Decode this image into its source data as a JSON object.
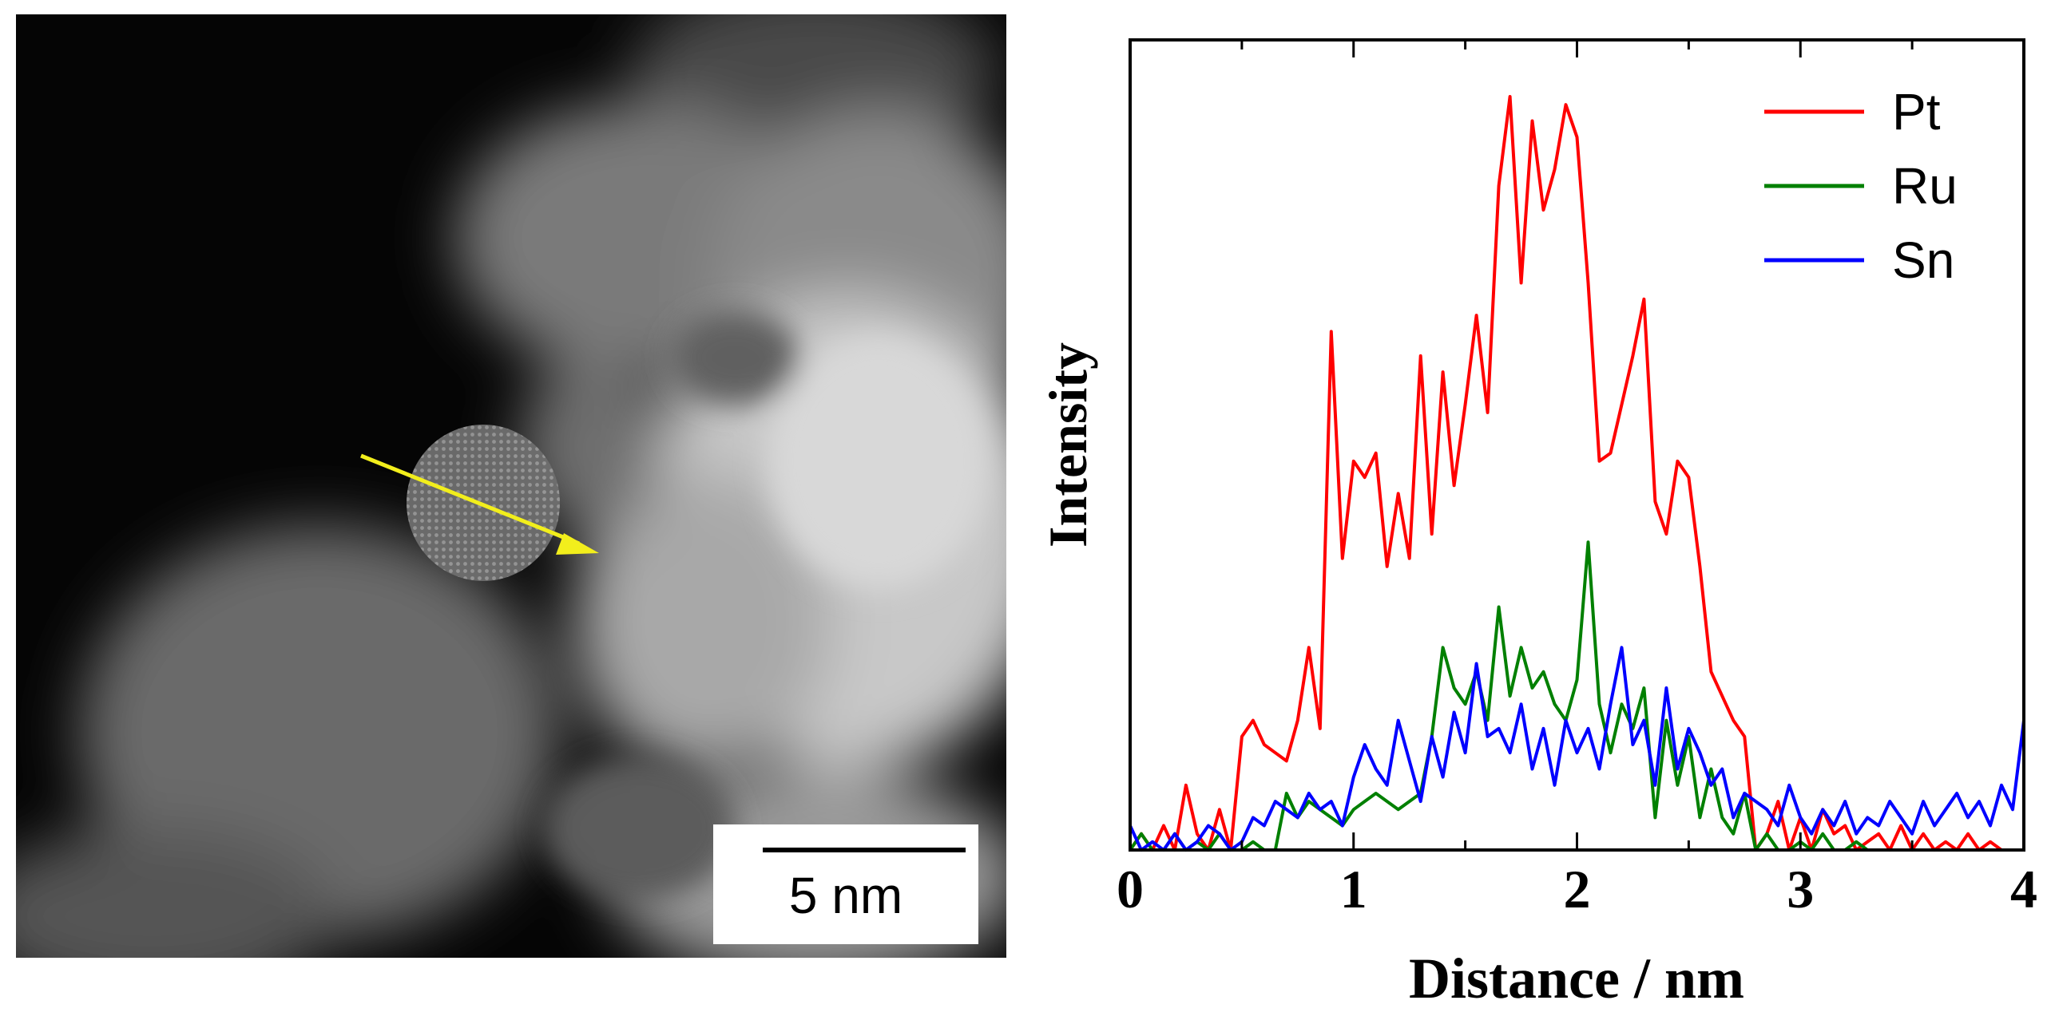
{
  "image_panel": {
    "scale_bar_label": "5 nm",
    "arrow_color": "#f2ee1c"
  },
  "chart_data": {
    "type": "line",
    "title": "",
    "xlabel": "Distance / nm",
    "ylabel": "Intensity",
    "xlim": [
      0,
      4
    ],
    "ylim": [
      0,
      1.0
    ],
    "xticks": [
      0,
      1,
      2,
      3,
      4
    ],
    "yticks_shown": false,
    "legend_position": "top-right",
    "series": [
      {
        "name": "Pt",
        "color": "#ff0000",
        "x": [
          0.0,
          0.05,
          0.1,
          0.15,
          0.2,
          0.25,
          0.3,
          0.35,
          0.4,
          0.45,
          0.5,
          0.55,
          0.6,
          0.65,
          0.7,
          0.75,
          0.8,
          0.85,
          0.9,
          0.95,
          1.0,
          1.05,
          1.1,
          1.15,
          1.2,
          1.25,
          1.3,
          1.35,
          1.4,
          1.45,
          1.5,
          1.55,
          1.6,
          1.65,
          1.7,
          1.75,
          1.8,
          1.85,
          1.9,
          1.95,
          2.0,
          2.05,
          2.1,
          2.15,
          2.2,
          2.25,
          2.3,
          2.35,
          2.4,
          2.45,
          2.5,
          2.55,
          2.6,
          2.65,
          2.7,
          2.75,
          2.8,
          2.85,
          2.9,
          2.95,
          3.0,
          3.05,
          3.1,
          3.15,
          3.2,
          3.25,
          3.3,
          3.35,
          3.4,
          3.45,
          3.5,
          3.55,
          3.6,
          3.65,
          3.7,
          3.75,
          3.8,
          3.85,
          3.9,
          3.95,
          4.0
        ],
        "y": [
          0.0,
          0.02,
          0.0,
          0.03,
          0.0,
          0.08,
          0.02,
          0.0,
          0.05,
          0.0,
          0.14,
          0.16,
          0.13,
          0.12,
          0.11,
          0.16,
          0.25,
          0.15,
          0.64,
          0.36,
          0.48,
          0.46,
          0.49,
          0.35,
          0.44,
          0.36,
          0.61,
          0.39,
          0.59,
          0.45,
          0.55,
          0.66,
          0.54,
          0.82,
          0.93,
          0.7,
          0.9,
          0.79,
          0.84,
          0.92,
          0.88,
          0.7,
          0.48,
          0.49,
          0.55,
          0.61,
          0.68,
          0.43,
          0.39,
          0.48,
          0.46,
          0.35,
          0.22,
          0.19,
          0.16,
          0.14,
          0.0,
          0.02,
          0.06,
          0.0,
          0.04,
          0.0,
          0.05,
          0.02,
          0.03,
          0.0,
          0.01,
          0.02,
          0.0,
          0.03,
          0.0,
          0.02,
          0.0,
          0.01,
          0.0,
          0.02,
          0.0,
          0.01,
          0.0,
          0.0,
          0.0
        ]
      },
      {
        "name": "Ru",
        "color": "#008000",
        "x": [
          0.0,
          0.05,
          0.1,
          0.15,
          0.2,
          0.25,
          0.3,
          0.35,
          0.4,
          0.45,
          0.5,
          0.55,
          0.6,
          0.65,
          0.7,
          0.75,
          0.8,
          0.85,
          0.9,
          0.95,
          1.0,
          1.05,
          1.1,
          1.15,
          1.2,
          1.25,
          1.3,
          1.35,
          1.4,
          1.45,
          1.5,
          1.55,
          1.6,
          1.65,
          1.7,
          1.75,
          1.8,
          1.85,
          1.9,
          1.95,
          2.0,
          2.05,
          2.1,
          2.15,
          2.2,
          2.25,
          2.3,
          2.35,
          2.4,
          2.45,
          2.5,
          2.55,
          2.6,
          2.65,
          2.7,
          2.75,
          2.8,
          2.85,
          2.9,
          2.95,
          3.0,
          3.05,
          3.1,
          3.15,
          3.2,
          3.25,
          3.3,
          3.35,
          3.4,
          3.45,
          3.5,
          3.55,
          3.6,
          3.65,
          3.7,
          3.75,
          3.8,
          3.85,
          3.9,
          3.95,
          4.0
        ],
        "y": [
          0.0,
          0.02,
          0.0,
          0.0,
          0.02,
          0.0,
          0.01,
          0.0,
          0.02,
          0.0,
          0.0,
          0.01,
          0.0,
          0.0,
          0.07,
          0.04,
          0.06,
          0.05,
          0.04,
          0.03,
          0.05,
          0.06,
          0.07,
          0.06,
          0.05,
          0.06,
          0.07,
          0.14,
          0.25,
          0.2,
          0.18,
          0.22,
          0.16,
          0.3,
          0.19,
          0.25,
          0.2,
          0.22,
          0.18,
          0.16,
          0.21,
          0.38,
          0.18,
          0.12,
          0.18,
          0.15,
          0.2,
          0.04,
          0.16,
          0.08,
          0.14,
          0.04,
          0.1,
          0.04,
          0.02,
          0.07,
          0.0,
          0.02,
          0.0,
          0.0,
          0.01,
          0.0,
          0.02,
          0.0,
          0.0,
          0.01,
          0.0,
          0.0,
          0.0,
          0.0,
          0.0,
          0.0,
          0.0,
          0.0,
          0.0,
          0.0,
          0.0,
          0.0,
          0.0,
          0.0,
          0.0
        ]
      },
      {
        "name": "Sn",
        "color": "#0000ff",
        "x": [
          0.0,
          0.05,
          0.1,
          0.15,
          0.2,
          0.25,
          0.3,
          0.35,
          0.4,
          0.45,
          0.5,
          0.55,
          0.6,
          0.65,
          0.7,
          0.75,
          0.8,
          0.85,
          0.9,
          0.95,
          1.0,
          1.05,
          1.1,
          1.15,
          1.2,
          1.25,
          1.3,
          1.35,
          1.4,
          1.45,
          1.5,
          1.55,
          1.6,
          1.65,
          1.7,
          1.75,
          1.8,
          1.85,
          1.9,
          1.95,
          2.0,
          2.05,
          2.1,
          2.15,
          2.2,
          2.25,
          2.3,
          2.35,
          2.4,
          2.45,
          2.5,
          2.55,
          2.6,
          2.65,
          2.7,
          2.75,
          2.8,
          2.85,
          2.9,
          2.95,
          3.0,
          3.05,
          3.1,
          3.15,
          3.2,
          3.25,
          3.3,
          3.35,
          3.4,
          3.45,
          3.5,
          3.55,
          3.6,
          3.65,
          3.7,
          3.75,
          3.8,
          3.85,
          3.9,
          3.95,
          4.0
        ],
        "y": [
          0.03,
          0.0,
          0.01,
          0.0,
          0.02,
          0.0,
          0.01,
          0.03,
          0.02,
          0.0,
          0.01,
          0.04,
          0.03,
          0.06,
          0.05,
          0.04,
          0.07,
          0.05,
          0.06,
          0.03,
          0.09,
          0.13,
          0.1,
          0.08,
          0.16,
          0.11,
          0.06,
          0.14,
          0.09,
          0.17,
          0.12,
          0.23,
          0.14,
          0.15,
          0.12,
          0.18,
          0.1,
          0.15,
          0.08,
          0.16,
          0.12,
          0.15,
          0.1,
          0.18,
          0.25,
          0.13,
          0.16,
          0.08,
          0.2,
          0.1,
          0.15,
          0.12,
          0.08,
          0.1,
          0.04,
          0.07,
          0.06,
          0.05,
          0.03,
          0.08,
          0.04,
          0.02,
          0.05,
          0.03,
          0.06,
          0.02,
          0.04,
          0.03,
          0.06,
          0.04,
          0.02,
          0.06,
          0.03,
          0.05,
          0.07,
          0.04,
          0.06,
          0.03,
          0.08,
          0.05,
          0.16
        ]
      }
    ]
  }
}
